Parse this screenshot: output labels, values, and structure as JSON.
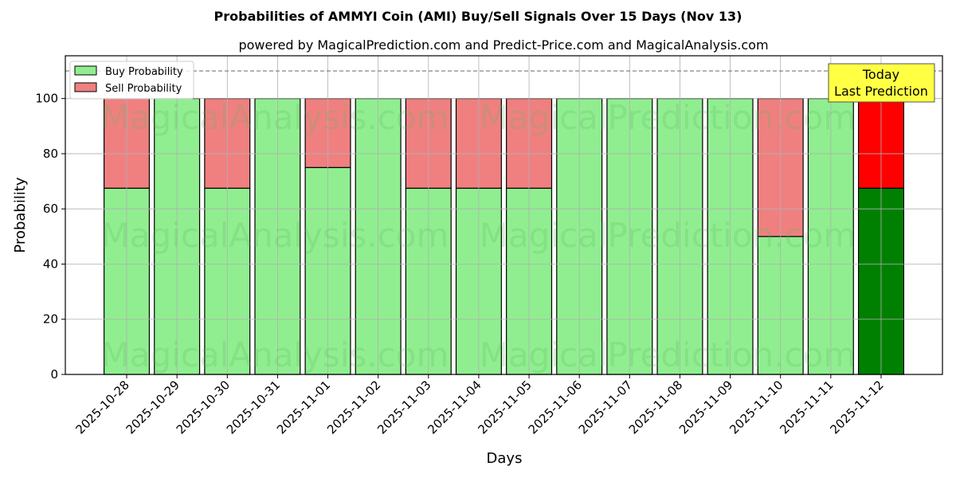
{
  "chart_data": {
    "type": "bar",
    "stacked": true,
    "title": "Probabilities of AMMYI Coin (AMI) Buy/Sell Signals Over 15 Days (Nov 13)",
    "subtitle": "powered by MagicalPrediction.com and Predict-Price.com and MagicalAnalysis.com",
    "xlabel": "Days",
    "ylabel": "Probability",
    "ylim": [
      0,
      115.5
    ],
    "yticks": [
      0,
      20,
      40,
      60,
      80,
      100
    ],
    "categories": [
      "2025-10-28",
      "2025-10-29",
      "2025-10-30",
      "2025-10-31",
      "2025-11-01",
      "2025-11-02",
      "2025-11-03",
      "2025-11-04",
      "2025-11-05",
      "2025-11-06",
      "2025-11-07",
      "2025-11-08",
      "2025-11-09",
      "2025-11-10",
      "2025-11-11",
      "2025-11-12"
    ],
    "series": [
      {
        "name": "Buy Probability",
        "color": "#90ee90",
        "values": [
          67.5,
          100,
          67.5,
          100,
          75,
          100,
          67.5,
          67.5,
          67.5,
          100,
          100,
          100,
          100,
          50,
          100,
          67.5
        ]
      },
      {
        "name": "Sell Probability",
        "color": "#f08080",
        "values": [
          32.5,
          0,
          32.5,
          0,
          25,
          0,
          32.5,
          32.5,
          32.5,
          0,
          0,
          0,
          0,
          50,
          0,
          32.5
        ]
      }
    ],
    "highlight": {
      "buy_color": "#008000",
      "sell_color": "#ff0000"
    },
    "reference_line": 110,
    "annotation": {
      "line1": "Today",
      "line2": "Last Prediction"
    },
    "legend_position": "top-left",
    "grid": true,
    "watermarks": [
      "MagicalAnalysis.com",
      "MagicalPrediction.com"
    ]
  }
}
